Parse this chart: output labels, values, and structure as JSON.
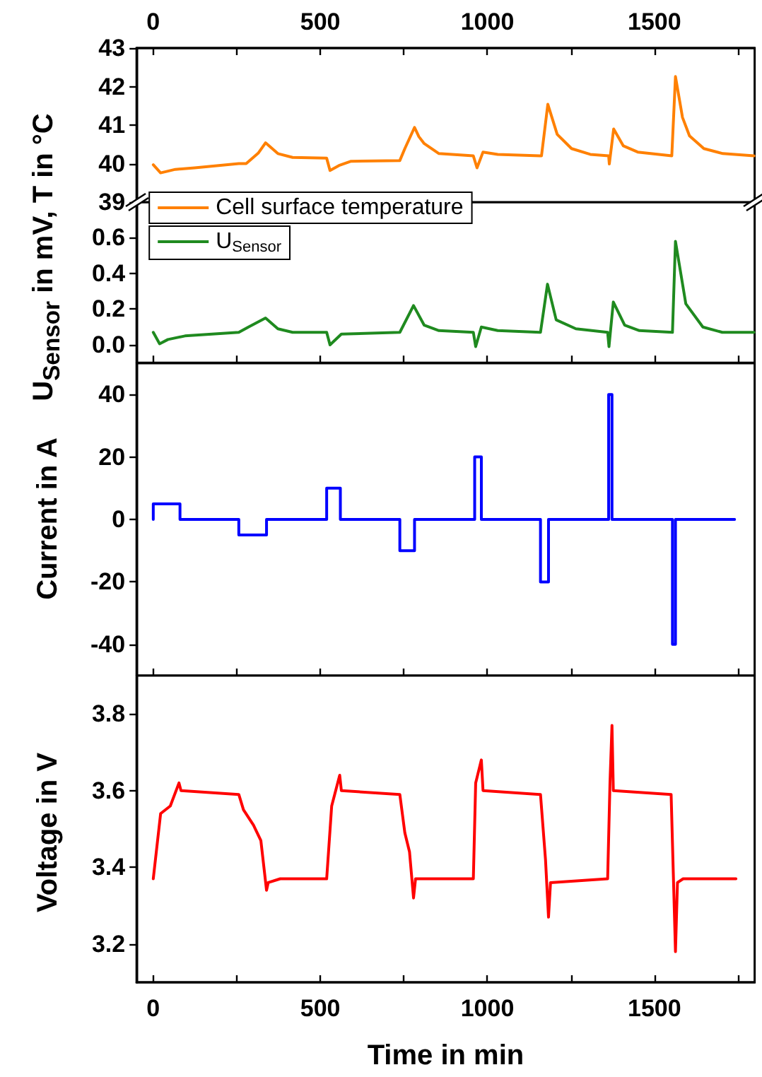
{
  "chart_data": [
    {
      "type": "line",
      "ylabel": "U$_{Sensor}$ in mV, T in °C",
      "xlim": [
        -50,
        1800
      ],
      "xticks": [
        0,
        500,
        1000,
        1500,
        {
          "value": 250,
          "label": null
        },
        {
          "value": 750,
          "label": null
        },
        {
          "value": 1250,
          "label": null
        },
        {
          "value": 1750,
          "label": null
        }
      ],
      "ylim": [
        39,
        43
      ],
      "yticks": [
        39,
        40,
        41,
        42,
        43
      ],
      "legend": "bottom left",
      "x": [
        0,
        22,
        66,
        124,
        256,
        278,
        314,
        336,
        373,
        417,
        519,
        529,
        556,
        592,
        738,
        753,
        782,
        795,
        811,
        855,
        958,
        969,
        987,
        1031,
        1162,
        1181,
        1209,
        1252,
        1308,
        1363,
        1365,
        1378,
        1407,
        1450,
        1552,
        1563,
        1584,
        1605,
        1648,
        1705,
        1798
      ],
      "series": [
        {
          "name": "Cell surface temperature",
          "color": "#ff8000",
          "values": [
            39.97,
            39.76,
            39.85,
            39.89,
            40.0,
            40.0,
            40.27,
            40.54,
            40.26,
            40.16,
            40.14,
            39.82,
            39.95,
            40.06,
            40.08,
            40.39,
            40.94,
            40.7,
            40.52,
            40.26,
            40.2,
            39.89,
            40.3,
            40.24,
            40.2,
            41.54,
            40.76,
            40.39,
            40.24,
            40.2,
            39.99,
            40.9,
            40.46,
            40.3,
            40.2,
            42.26,
            41.2,
            40.72,
            40.39,
            40.26,
            40.2
          ]
        }
      ]
    },
    {
      "type": "line",
      "xlim": [
        -50,
        1800
      ],
      "xticks": [
        0,
        500,
        1000,
        1500,
        {
          "value": 250,
          "label": null
        },
        {
          "value": 750,
          "label": null
        },
        {
          "value": 1250,
          "label": null
        },
        {
          "value": 1750,
          "label": null
        }
      ],
      "ylim": [
        -0.1,
        0.8
      ],
      "yticks": [
        {
          "value": 0,
          "label": "0.0"
        },
        0.2,
        0.4,
        0.6
      ],
      "tick_labels": "y",
      "legend": "top left",
      "x": [
        0,
        19,
        44,
        95,
        256,
        285,
        336,
        373,
        417,
        519,
        529,
        563,
        738,
        779,
        811,
        855,
        958,
        965,
        982,
        1031,
        1159,
        1180,
        1206,
        1265,
        1360,
        1364,
        1377,
        1411,
        1455,
        1554,
        1563,
        1594,
        1645,
        1703,
        1798
      ],
      "series": [
        {
          "name": "U$_{Sensor}$",
          "color": "#1f8a1f",
          "values": [
            0.07,
            0.006,
            0.03,
            0.05,
            0.07,
            0.1,
            0.15,
            0.09,
            0.07,
            0.07,
            0.0,
            0.06,
            0.07,
            0.22,
            0.11,
            0.08,
            0.07,
            -0.01,
            0.1,
            0.08,
            0.07,
            0.34,
            0.14,
            0.09,
            0.07,
            -0.01,
            0.24,
            0.11,
            0.08,
            0.07,
            0.58,
            0.23,
            0.1,
            0.07,
            0.07
          ]
        }
      ]
    },
    {
      "type": "step",
      "ylabel": "Current in A",
      "xlim": [
        -50,
        1800
      ],
      "xticks": [
        0,
        500,
        1000,
        1500,
        {
          "value": 250,
          "label": null
        },
        {
          "value": 750,
          "label": null
        },
        {
          "value": 1250,
          "label": null
        },
        {
          "value": 1750,
          "label": null
        }
      ],
      "ylim": [
        -50,
        50
      ],
      "yticks": [
        -40,
        -20,
        0,
        20,
        40
      ],
      "tick_labels": "y",
      "x": [
        0,
        0,
        80,
        256,
        339,
        519,
        560,
        738,
        782,
        962,
        982,
        1159,
        1183,
        1363,
        1373,
        1554,
        1563,
        1740
      ],
      "series": [
        {
          "color": "#0000ff",
          "values": [
            0,
            5,
            0,
            -5,
            0,
            10,
            0,
            -10,
            0,
            20,
            0,
            -20,
            0,
            40,
            0,
            -40,
            0,
            0
          ]
        }
      ]
    },
    {
      "type": "line",
      "ylabel": "Voltage in V",
      "xlabel": "Time in min",
      "xlim": [
        -50,
        1800
      ],
      "xticks": [
        0,
        500,
        1000,
        1500,
        {
          "value": 250,
          "label": null
        },
        {
          "value": 750,
          "label": null
        },
        {
          "value": 1250,
          "label": null
        },
        {
          "value": 1750,
          "label": null
        }
      ],
      "ylim": [
        3.1,
        3.9
      ],
      "yticks": [
        3.2,
        3.4,
        3.6,
        3.8
      ],
      "x": [
        0,
        22,
        51,
        77,
        83,
        256,
        270,
        300,
        322,
        339,
        344,
        380,
        519,
        534,
        558,
        563,
        738,
        753,
        767,
        779,
        785,
        958,
        965,
        982,
        987,
        1159,
        1174,
        1183,
        1189,
        1360,
        1367,
        1373,
        1377,
        1550,
        1563,
        1569,
        1586,
        1744
      ],
      "series": [
        {
          "color": "#ff0000",
          "values": [
            3.37,
            3.54,
            3.56,
            3.62,
            3.6,
            3.59,
            3.55,
            3.51,
            3.47,
            3.34,
            3.36,
            3.37,
            3.37,
            3.56,
            3.64,
            3.6,
            3.59,
            3.49,
            3.44,
            3.32,
            3.37,
            3.37,
            3.62,
            3.68,
            3.6,
            3.59,
            3.42,
            3.27,
            3.36,
            3.37,
            3.62,
            3.77,
            3.6,
            3.59,
            3.18,
            3.36,
            3.37,
            3.37
          ]
        }
      ]
    }
  ]
}
